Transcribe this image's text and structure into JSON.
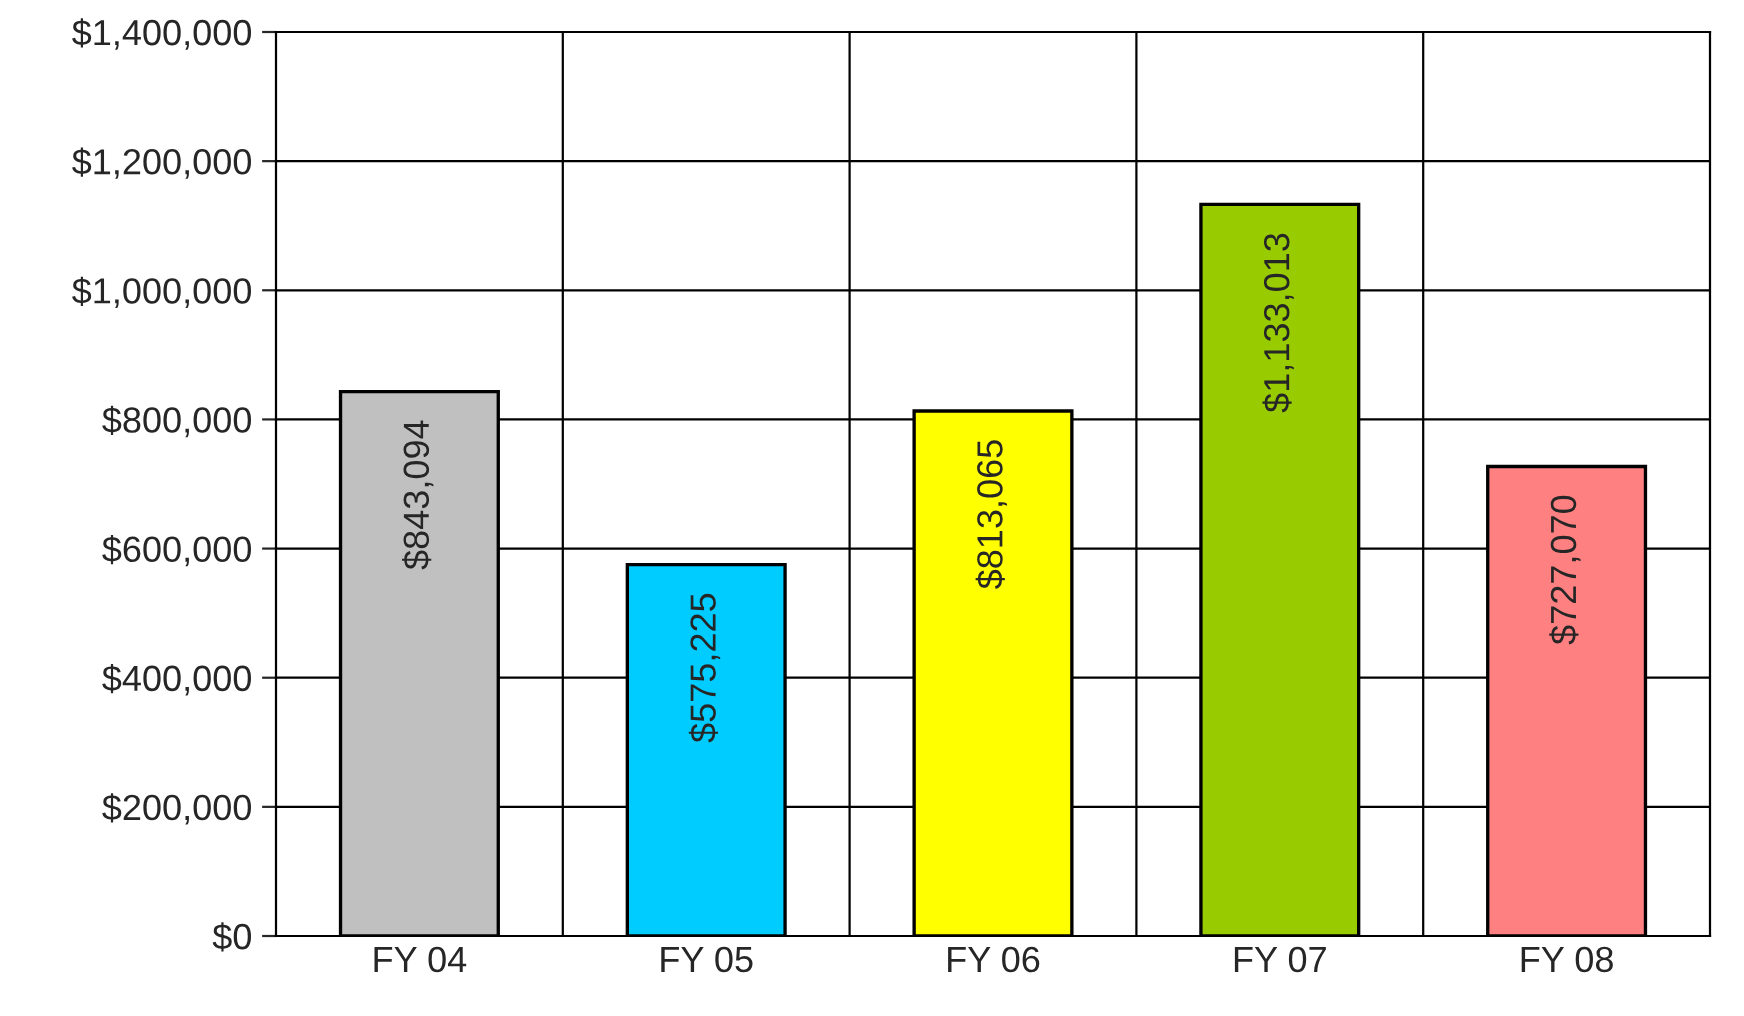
{
  "chart_data": {
    "type": "bar",
    "categories": [
      "FY 04",
      "FY 05",
      "FY 06",
      "FY 07",
      "FY 08"
    ],
    "values": [
      843094,
      575225,
      813065,
      1133013,
      727070
    ],
    "colors": [
      "#c0c0c0",
      "#00ccff",
      "#ffff00",
      "#99cc00",
      "#ff8080"
    ],
    "value_labels": [
      "$843,094",
      "$575,225",
      "$813,065",
      "$1,133,013",
      "$727,070"
    ],
    "ylim": [
      0,
      1400000
    ],
    "yticks": [
      {
        "value": 0,
        "label": "$0"
      },
      {
        "value": 200000,
        "label": "$200,000"
      },
      {
        "value": 400000,
        "label": "$400,000"
      },
      {
        "value": 600000,
        "label": "$600,000"
      },
      {
        "value": 800000,
        "label": "$800,000"
      },
      {
        "value": 1000000,
        "label": "$1,000,000"
      },
      {
        "value": 1200000,
        "label": "$1,200,000"
      },
      {
        "value": 1400000,
        "label": "$1,400,000"
      }
    ],
    "grid": true
  }
}
